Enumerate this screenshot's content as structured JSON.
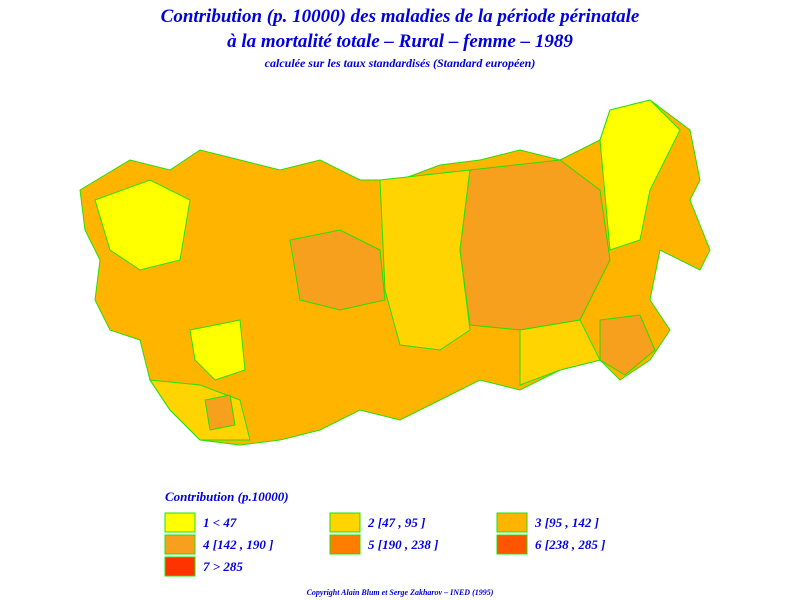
{
  "header": {
    "title": "Contribution (p. 10000) des maladies de la période périnatale",
    "title_line2": "à la mortalité totale – Rural – femme – 1989",
    "subtitle": "calculée sur les taux standardisés (Standard européen)"
  },
  "legend": {
    "title": "Contribution (p.10000)",
    "items": [
      {
        "label": "1  <  47",
        "color": "#ffff00"
      },
      {
        "label": "2 [47 , 95 ]",
        "color": "#ffd400"
      },
      {
        "label": "3 [95 , 142 ]",
        "color": "#ffb400"
      },
      {
        "label": "4 [142 , 190 ]",
        "color": "#f7a01e"
      },
      {
        "label": "5 [190 , 238 ]",
        "color": "#ff7d00"
      },
      {
        "label": "6 [238 , 285 ]",
        "color": "#ff5500"
      },
      {
        "label": "7  >  285",
        "color": "#ff3300"
      }
    ]
  },
  "footer": {
    "copyright": "Copyright Alain Blum et Serge Zakharov – INED (1995)"
  }
}
